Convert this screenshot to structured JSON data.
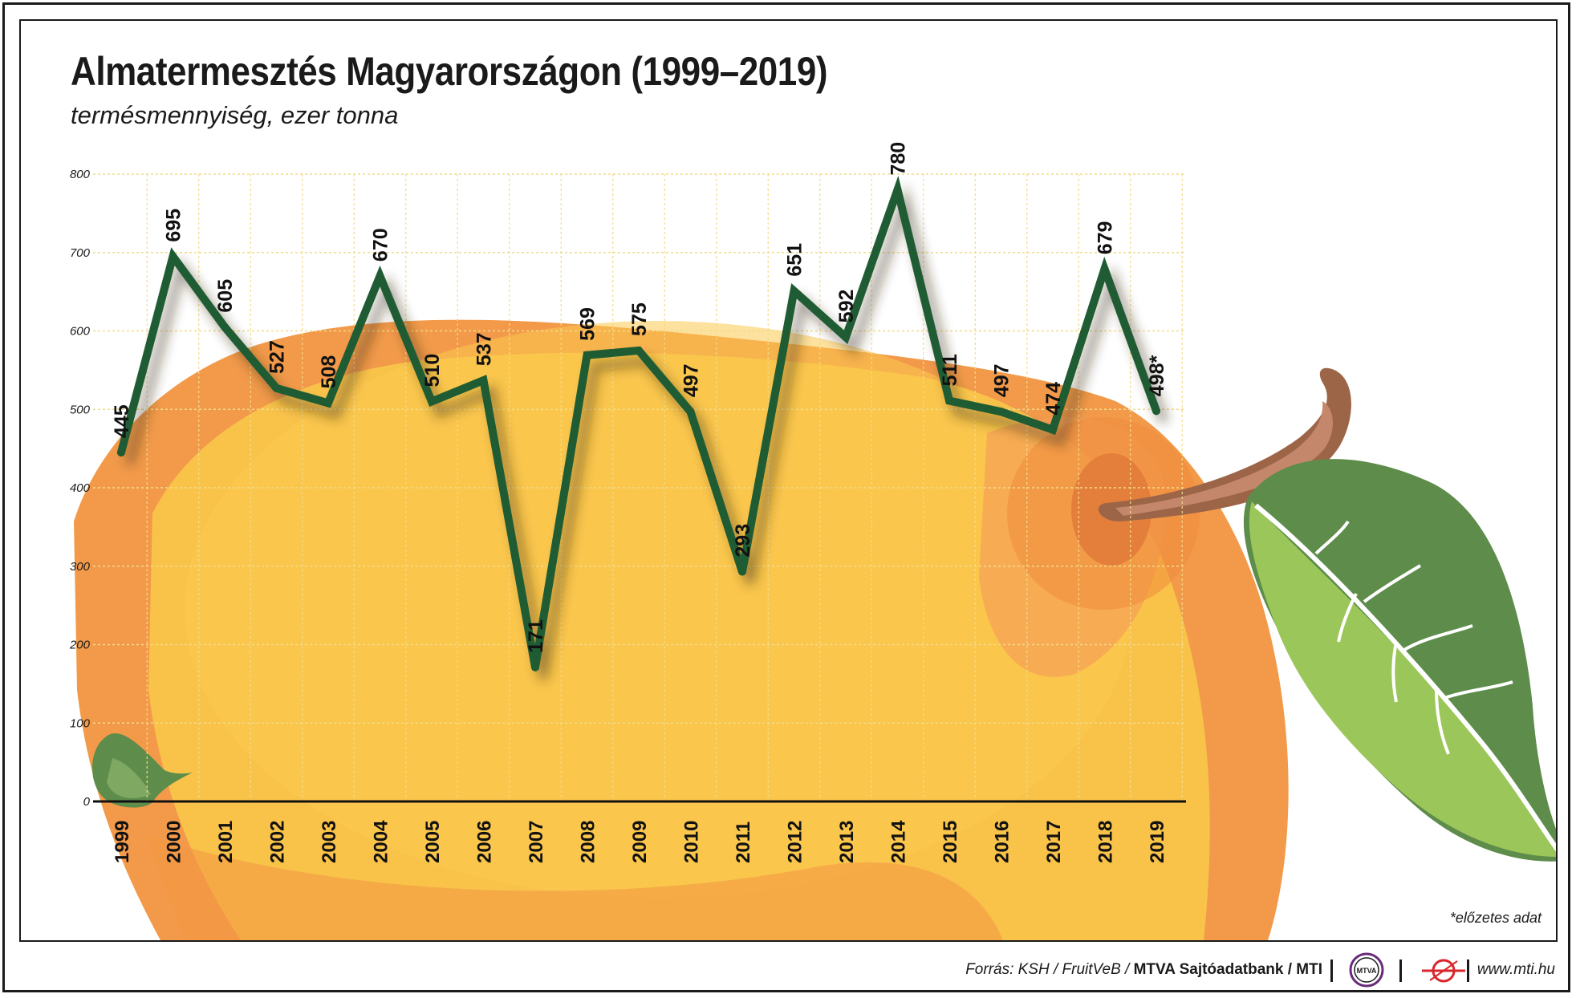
{
  "title": "Almatermesztés Magyarországon (1999–2019)",
  "subtitle": "termésmennyiség, ezer tonna",
  "note": "*előzetes adat",
  "footer": {
    "source_prefix": "Forrás: KSH / FruitVeB / ",
    "source_bold": "MTVA Sajtóadatbank / MTI",
    "logo_text": "MTVA",
    "website": "www.mti.hu"
  },
  "colors": {
    "line": "#1f5c33",
    "apple_light": "#f9c34a",
    "apple_dark": "#f29a4a",
    "stem": "#c4876b",
    "leaf_dark": "#5e8c4b",
    "leaf_light": "#9bc65a",
    "grid": "#f2dc8a"
  },
  "chart_data": {
    "type": "line",
    "title": "Almatermesztés Magyarországon (1999–2019)",
    "ylabel": "termésmennyiség, ezer tonna",
    "xlabel": "",
    "ylim": [
      0,
      800
    ],
    "yticks": [
      0,
      100,
      200,
      300,
      400,
      500,
      600,
      700,
      800
    ],
    "categories": [
      "1999",
      "2000",
      "2001",
      "2002",
      "2003",
      "2004",
      "2005",
      "2006",
      "2007",
      "2008",
      "2009",
      "2010",
      "2011",
      "2012",
      "2013",
      "2014",
      "2015",
      "2016",
      "2017",
      "2018",
      "2019"
    ],
    "values": [
      445,
      695,
      605,
      527,
      508,
      670,
      510,
      537,
      171,
      569,
      575,
      497,
      293,
      651,
      592,
      780,
      511,
      497,
      474,
      679,
      498
    ],
    "labels": [
      "445",
      "695",
      "605",
      "527",
      "508",
      "670",
      "510",
      "537",
      "171",
      "569",
      "575",
      "497",
      "293",
      "651",
      "592",
      "780",
      "511",
      "497",
      "474",
      "679",
      "498*"
    ],
    "grid": true
  }
}
